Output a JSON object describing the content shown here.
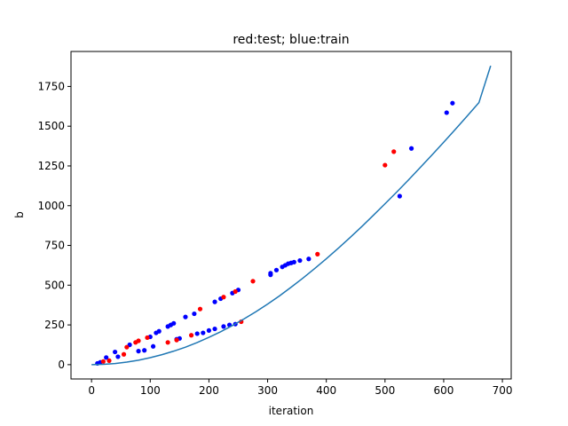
{
  "chart_data": {
    "type": "scatter",
    "title": "red:test; blue:train",
    "xlabel": "iteration",
    "ylabel": "b",
    "xlim": [
      -35,
      715
    ],
    "ylim": [
      -90,
      1970
    ],
    "xticks": [
      0,
      100,
      200,
      300,
      400,
      500,
      600,
      700
    ],
    "yticks": [
      0,
      250,
      500,
      750,
      1000,
      1250,
      1500,
      1750
    ],
    "grid": false,
    "series": [
      {
        "kind": "points",
        "color": "#0000ff",
        "points": [
          [
            10,
            8
          ],
          [
            15,
            15
          ],
          [
            25,
            45
          ],
          [
            40,
            80
          ],
          [
            45,
            50
          ],
          [
            65,
            125
          ],
          [
            80,
            85
          ],
          [
            90,
            90
          ],
          [
            100,
            175
          ],
          [
            105,
            115
          ],
          [
            110,
            200
          ],
          [
            115,
            210
          ],
          [
            130,
            240
          ],
          [
            135,
            250
          ],
          [
            140,
            260
          ],
          [
            145,
            160
          ],
          [
            150,
            165
          ],
          [
            160,
            300
          ],
          [
            175,
            320
          ],
          [
            180,
            195
          ],
          [
            190,
            200
          ],
          [
            200,
            215
          ],
          [
            210,
            225
          ],
          [
            210,
            395
          ],
          [
            220,
            415
          ],
          [
            225,
            240
          ],
          [
            235,
            250
          ],
          [
            240,
            450
          ],
          [
            245,
            255
          ],
          [
            250,
            470
          ],
          [
            305,
            575
          ],
          [
            305,
            565
          ],
          [
            315,
            595
          ],
          [
            325,
            615
          ],
          [
            330,
            625
          ],
          [
            335,
            635
          ],
          [
            340,
            640
          ],
          [
            345,
            645
          ],
          [
            355,
            655
          ],
          [
            370,
            665
          ],
          [
            525,
            1060
          ],
          [
            545,
            1360
          ],
          [
            605,
            1585
          ],
          [
            615,
            1645
          ]
        ]
      },
      {
        "kind": "points",
        "color": "#ff0000",
        "points": [
          [
            20,
            20
          ],
          [
            30,
            25
          ],
          [
            55,
            65
          ],
          [
            60,
            110
          ],
          [
            75,
            140
          ],
          [
            80,
            150
          ],
          [
            95,
            170
          ],
          [
            130,
            140
          ],
          [
            145,
            155
          ],
          [
            170,
            185
          ],
          [
            185,
            350
          ],
          [
            225,
            425
          ],
          [
            245,
            460
          ],
          [
            255,
            270
          ],
          [
            275,
            525
          ],
          [
            385,
            695
          ],
          [
            500,
            1255
          ],
          [
            515,
            1340
          ]
        ]
      },
      {
        "kind": "curve",
        "color": "#1f77b4",
        "x": [
          0,
          20,
          40,
          60,
          80,
          100,
          120,
          140,
          160,
          180,
          200,
          220,
          240,
          260,
          280,
          300,
          320,
          340,
          360,
          380,
          400,
          420,
          440,
          460,
          480,
          500,
          520,
          540,
          560,
          580,
          600,
          620,
          640,
          660,
          680
        ],
        "y": [
          0,
          2,
          7,
          16,
          28,
          44,
          63,
          85,
          110,
          139,
          172,
          207,
          246,
          288,
          333,
          381,
          432,
          487,
          544,
          604,
          666,
          731,
          798,
          867,
          939,
          1012,
          1086,
          1162,
          1240,
          1319,
          1399,
          1481,
          1564,
          1648,
          1880
        ]
      }
    ]
  }
}
